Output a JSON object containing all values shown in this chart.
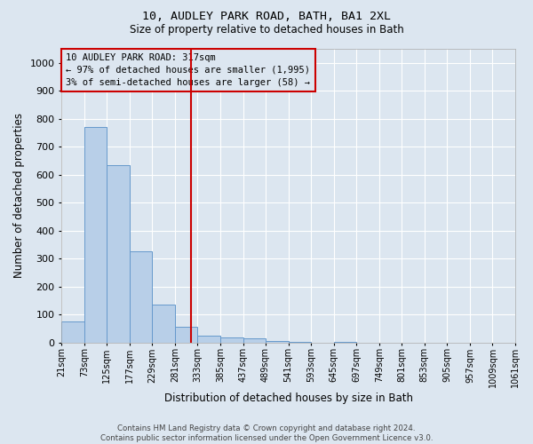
{
  "title1": "10, AUDLEY PARK ROAD, BATH, BA1 2XL",
  "title2": "Size of property relative to detached houses in Bath",
  "xlabel": "Distribution of detached houses by size in Bath",
  "ylabel": "Number of detached properties",
  "footer1": "Contains HM Land Registry data © Crown copyright and database right 2024.",
  "footer2": "Contains public sector information licensed under the Open Government Licence v3.0.",
  "annotation_title": "10 AUDLEY PARK ROAD: 317sqm",
  "annotation_line1": "← 97% of detached houses are smaller (1,995)",
  "annotation_line2": "3% of semi-detached houses are larger (58) →",
  "property_size": 317,
  "bin_edges": [
    21,
    73,
    125,
    177,
    229,
    281,
    333,
    385,
    437,
    489,
    541,
    593,
    645,
    697,
    749,
    801,
    853,
    905,
    957,
    1009,
    1061
  ],
  "bin_counts": [
    75,
    770,
    635,
    325,
    135,
    55,
    25,
    18,
    15,
    5,
    2,
    0,
    2,
    0,
    0,
    0,
    0,
    0,
    0,
    0
  ],
  "bar_color": "#b8cfe8",
  "bar_edge_color": "#6699cc",
  "vline_color": "#cc0000",
  "vline_x": 317,
  "annotation_box_color": "#cc0000",
  "background_color": "#dce6f0",
  "grid_color": "#ffffff",
  "ylim": [
    0,
    1050
  ],
  "yticks": [
    0,
    100,
    200,
    300,
    400,
    500,
    600,
    700,
    800,
    900,
    1000
  ]
}
